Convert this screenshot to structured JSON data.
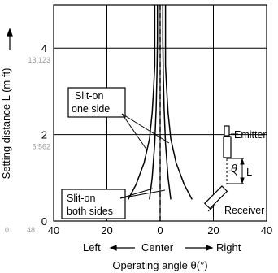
{
  "chart_data": {
    "type": "line",
    "title": "",
    "xlabel": "Operating angle θ(°)",
    "ylabel": "Setting distance L (m ft)",
    "xlim": [
      -40,
      40
    ],
    "ylim": [
      0,
      5
    ],
    "grid": true,
    "x_ticks": [
      {
        "value": -40,
        "label": "40"
      },
      {
        "value": -20,
        "label": "20"
      },
      {
        "value": 0,
        "label": "0"
      },
      {
        "value": 20,
        "label": "20"
      },
      {
        "value": 40,
        "label": "40"
      }
    ],
    "y_ticks": [
      {
        "value": 0,
        "label": "0",
        "sub": "0"
      },
      {
        "value": 2,
        "label": "2",
        "sub": "6.562"
      },
      {
        "value": 4,
        "label": "4",
        "sub": "13.123"
      }
    ],
    "x_extra": {
      "left_sub": "48"
    },
    "direction_labels": {
      "left": "Left",
      "center": "Center",
      "right": "Right"
    },
    "series": [
      {
        "name": "Slit-on one side",
        "style": "solid",
        "x": [
          -12,
          -9,
          -6,
          -4,
          -3,
          -2.5,
          -2,
          -2,
          -2,
          -2
        ],
        "y": [
          0.5,
          0.85,
          1.35,
          1.9,
          2.5,
          3.0,
          3.6,
          4.2,
          4.8,
          5.0
        ]
      },
      {
        "name": "Slit-on one side",
        "style": "solid",
        "x": [
          12,
          9,
          6,
          4,
          3,
          2.5,
          2,
          2,
          2,
          2
        ],
        "y": [
          0.5,
          0.85,
          1.35,
          1.9,
          2.5,
          3.0,
          3.6,
          4.2,
          4.8,
          5.0
        ]
      },
      {
        "name": "Slit-on both sides",
        "style": "solid",
        "x": [
          -4,
          -3,
          -2,
          -1.5,
          -1.2,
          -1,
          -1,
          -1
        ],
        "y": [
          0.5,
          1.0,
          1.8,
          2.6,
          3.4,
          4.2,
          4.8,
          5.0
        ]
      },
      {
        "name": "Slit-on both sides",
        "style": "solid",
        "x": [
          4,
          3,
          2,
          1.5,
          1.2,
          1,
          1,
          1
        ],
        "y": [
          0.5,
          1.0,
          1.8,
          2.6,
          3.4,
          4.2,
          4.8,
          5.0
        ]
      },
      {
        "name": "center",
        "style": "dashed",
        "x": [
          0,
          0
        ],
        "y": [
          0,
          5
        ]
      }
    ],
    "annotations": {
      "one_side": [
        "Slit-on",
        "one side"
      ],
      "both_sides": [
        "Slit-on",
        "both sides"
      ],
      "emitter": "Emitter",
      "receiver": "Receiver",
      "theta": "θ",
      "L": "L"
    }
  }
}
